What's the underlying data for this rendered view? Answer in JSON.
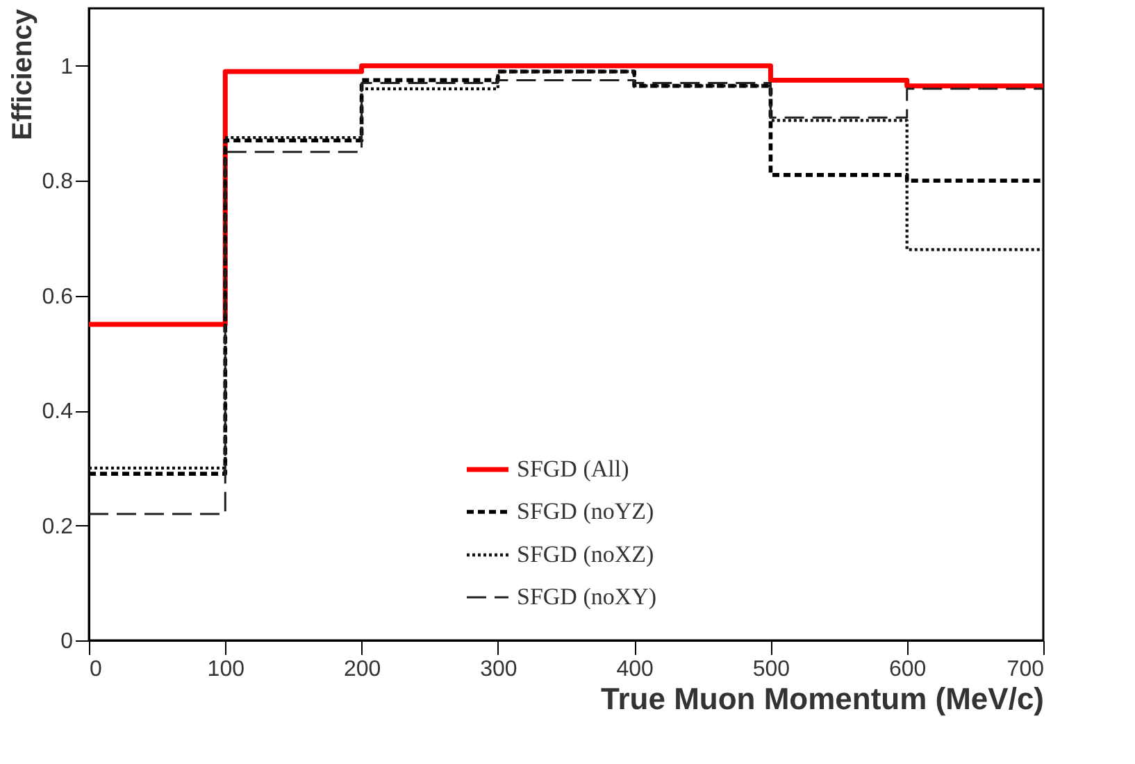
{
  "chart_data": {
    "type": "histogram",
    "xlabel": "True Muon Momentum (MeV/c)",
    "ylabel": "Efficiency",
    "bins": [
      0,
      100,
      200,
      300,
      400,
      500,
      600,
      700
    ],
    "series": [
      {
        "name": "SFGD (All)",
        "color": "#ff0000",
        "line_style": "solid",
        "values": [
          0.55,
          0.99,
          1.0,
          1.0,
          1.0,
          0.975,
          0.965
        ]
      },
      {
        "name": "SFGD (noYZ)",
        "color": "#000000",
        "line_style": "dashed",
        "values": [
          0.29,
          0.87,
          0.975,
          0.99,
          0.965,
          0.81,
          0.8
        ]
      },
      {
        "name": "SFGD (noXZ)",
        "color": "#101010",
        "line_style": "dotted",
        "values": [
          0.3,
          0.875,
          0.96,
          0.99,
          0.965,
          0.905,
          0.68
        ]
      },
      {
        "name": "SFGD (noXY)",
        "color": "#202020",
        "line_style": "longdashed",
        "values": [
          0.22,
          0.85,
          0.97,
          0.975,
          0.97,
          0.91,
          0.96
        ]
      }
    ],
    "xlim": [
      0,
      700
    ],
    "xticks": [
      0,
      100,
      200,
      300,
      400,
      500,
      600,
      700
    ],
    "ylim": [
      0,
      1.1
    ],
    "yticks": [
      0,
      0.2,
      0.4,
      0.6,
      0.8,
      1
    ],
    "grid": false,
    "legend": "bottom"
  }
}
